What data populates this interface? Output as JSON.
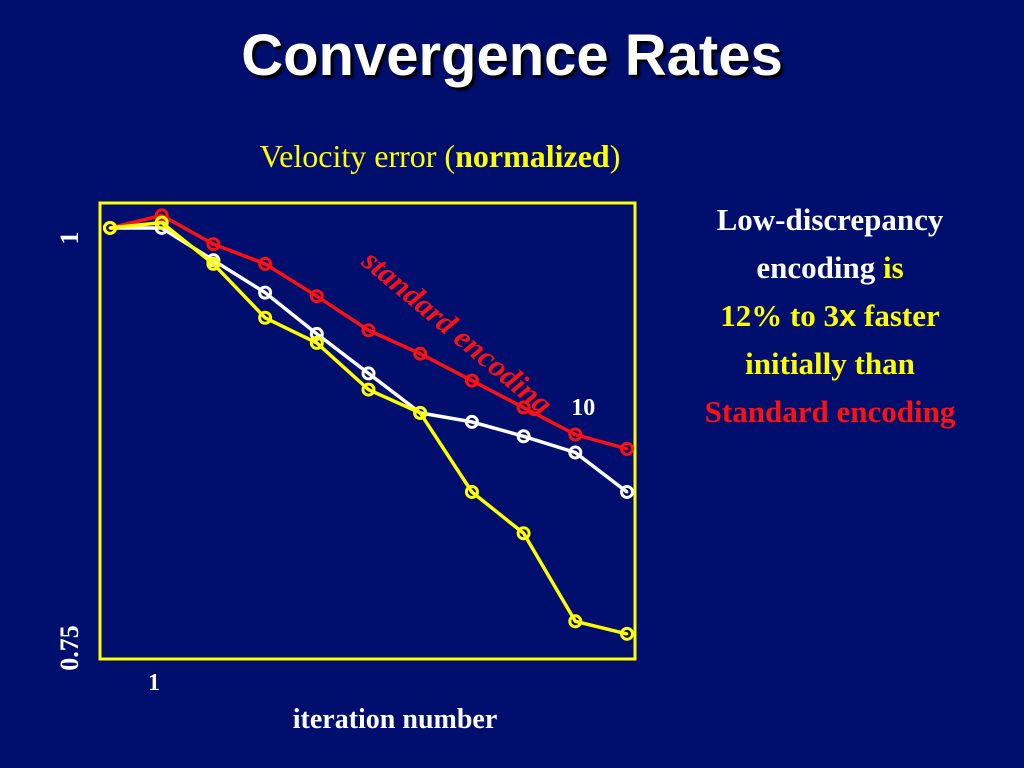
{
  "slide": {
    "title": "Convergence Rates"
  },
  "chart_title": {
    "prefix": "Velocity error",
    "open": "(",
    "bold": "normalized",
    "close": ")"
  },
  "chart_data": {
    "type": "line",
    "title": "Velocity error (normalized)",
    "xlabel": "iteration number",
    "ylabel": "",
    "xlim": [
      1,
      11
    ],
    "ylim": [
      0.75,
      1.0
    ],
    "x_tick_labels": [
      {
        "value": 1,
        "label": "1"
      },
      {
        "value": 10,
        "label": "10"
      }
    ],
    "y_tick_labels": [
      {
        "value": 0.75,
        "label": "0.75"
      },
      {
        "value": 1.0,
        "label": "1"
      }
    ],
    "x": [
      1,
      2,
      3,
      4,
      5,
      6,
      7,
      8,
      9,
      10,
      11
    ],
    "series": [
      {
        "color": "#ff1010",
        "values": [
          0.99,
          0.997,
          0.981,
          0.97,
          0.952,
          0.933,
          0.92,
          0.905,
          0.89,
          0.875,
          0.867
        ]
      },
      {
        "color": "#ffffff",
        "values": [
          0.99,
          0.99,
          0.972,
          0.954,
          0.931,
          0.909,
          0.887,
          0.882,
          0.874,
          0.865,
          0.843
        ]
      },
      {
        "color": "#ffff00",
        "values": [
          0.99,
          0.993,
          0.97,
          0.94,
          0.926,
          0.9,
          0.887,
          0.843,
          0.82,
          0.771,
          0.764
        ]
      }
    ],
    "annotation": {
      "text": "standard encoding",
      "color": "#ff1010"
    },
    "grid": false,
    "frame_color": "#ffff00"
  },
  "note": {
    "line1": "Low-discrepancy",
    "line2a": "encoding",
    "line2b": "is",
    "line3a": "12%",
    "line3b": "to",
    "line3c": "3",
    "line3d": "x",
    "line3e": "faster",
    "line4": "initially than",
    "line5": "Standard encoding"
  }
}
